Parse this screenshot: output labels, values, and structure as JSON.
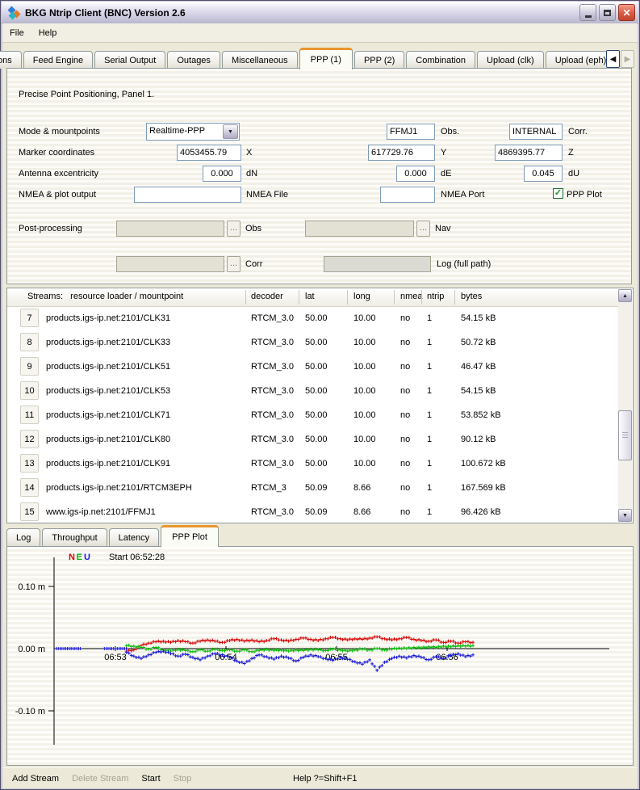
{
  "window": {
    "title": "BKG Ntrip Client (BNC) Version 2.6",
    "icons": {
      "close": "✕",
      "scroll_left": "◀",
      "scroll_right": "▶",
      "dropdown_arrow": "▼",
      "scroll_up": "▲",
      "scroll_down": "▼",
      "check": "✓"
    }
  },
  "menu": {
    "items": [
      "File",
      "Help"
    ]
  },
  "tabs": {
    "items": [
      {
        "label": "ctions",
        "selected": false
      },
      {
        "label": "Feed Engine",
        "selected": false
      },
      {
        "label": "Serial Output",
        "selected": false
      },
      {
        "label": "Outages",
        "selected": false
      },
      {
        "label": "Miscellaneous",
        "selected": false
      },
      {
        "label": "PPP (1)",
        "selected": true
      },
      {
        "label": "PPP (2)",
        "selected": false
      },
      {
        "label": "Combination",
        "selected": false
      },
      {
        "label": "Upload (clk)",
        "selected": false
      },
      {
        "label": "Upload (eph)",
        "selected": false
      }
    ]
  },
  "panel": {
    "caption": "Precise Point Positioning, Panel 1.",
    "mode": {
      "label": "Mode & mountpoints",
      "value": "Realtime-PPP",
      "obs_value": "FFMJ1",
      "obs_label": "Obs.",
      "corr_value": "INTERNAL",
      "corr_label": "Corr."
    },
    "marker": {
      "label": "Marker coordinates",
      "x": "4053455.79",
      "x_label": "X",
      "y": "617729.76",
      "y_label": "Y",
      "z": "4869395.77",
      "z_label": "Z"
    },
    "antenna": {
      "label": "Antenna excentricity",
      "dn": "0.000",
      "dn_label": "dN",
      "de": "0.000",
      "de_label": "dE",
      "du": "0.045",
      "du_label": "dU"
    },
    "nmea": {
      "label": "NMEA & plot output",
      "file_value": "",
      "file_label": "NMEA File",
      "port_value": "",
      "port_label": "NMEA Port",
      "ppp_plot_label": "PPP Plot",
      "ppp_plot_checked": true
    },
    "post": {
      "label": "Post-processing",
      "browse": "...",
      "obs_label": "Obs",
      "nav_label": "Nav",
      "corr_label": "Corr",
      "log_label": "Log (full path)"
    }
  },
  "streams_table": {
    "headers": [
      "Streams:   resource loader / mountpoint",
      "decoder",
      "lat",
      "long",
      "nmea",
      "ntrip",
      "bytes"
    ],
    "rows": [
      {
        "num": "7",
        "mountpoint": "products.igs-ip.net:2101/CLK31",
        "decoder": "RTCM_3.0",
        "lat": "50.00",
        "long": "10.00",
        "nmea": "no",
        "ntrip": "1",
        "bytes": "54.15 kB"
      },
      {
        "num": "8",
        "mountpoint": "products.igs-ip.net:2101/CLK33",
        "decoder": "RTCM_3.0",
        "lat": "50.00",
        "long": "10.00",
        "nmea": "no",
        "ntrip": "1",
        "bytes": "50.72 kB"
      },
      {
        "num": "9",
        "mountpoint": "products.igs-ip.net:2101/CLK51",
        "decoder": "RTCM_3.0",
        "lat": "50.00",
        "long": "10.00",
        "nmea": "no",
        "ntrip": "1",
        "bytes": "46.47 kB"
      },
      {
        "num": "10",
        "mountpoint": "products.igs-ip.net:2101/CLK53",
        "decoder": "RTCM_3.0",
        "lat": "50.00",
        "long": "10.00",
        "nmea": "no",
        "ntrip": "1",
        "bytes": "54.15 kB"
      },
      {
        "num": "11",
        "mountpoint": "products.igs-ip.net:2101/CLK71",
        "decoder": "RTCM_3.0",
        "lat": "50.00",
        "long": "10.00",
        "nmea": "no",
        "ntrip": "1",
        "bytes": "53.852 kB"
      },
      {
        "num": "12",
        "mountpoint": "products.igs-ip.net:2101/CLK80",
        "decoder": "RTCM_3.0",
        "lat": "50.00",
        "long": "10.00",
        "nmea": "no",
        "ntrip": "1",
        "bytes": "90.12 kB"
      },
      {
        "num": "13",
        "mountpoint": "products.igs-ip.net:2101/CLK91",
        "decoder": "RTCM_3.0",
        "lat": "50.00",
        "long": "10.00",
        "nmea": "no",
        "ntrip": "1",
        "bytes": "100.672 kB"
      },
      {
        "num": "14",
        "mountpoint": "products.igs-ip.net:2101/RTCM3EPH",
        "decoder": "RTCM_3",
        "lat": "50.09",
        "long": "8.66",
        "nmea": "no",
        "ntrip": "1",
        "bytes": "167.569 kB"
      },
      {
        "num": "15",
        "mountpoint": "www.igs-ip.net:2101/FFMJ1",
        "decoder": "RTCM_3.0",
        "lat": "50.09",
        "long": "8.66",
        "nmea": "no",
        "ntrip": "1",
        "bytes": "96.426 kB"
      }
    ]
  },
  "bottom_tabs": {
    "items": [
      {
        "label": "Log",
        "selected": false
      },
      {
        "label": "Throughput",
        "selected": false
      },
      {
        "label": "Latency",
        "selected": false
      },
      {
        "label": "PPP Plot",
        "selected": true
      }
    ]
  },
  "chart_data": {
    "type": "scatter",
    "start_label": "Start 06:52:28",
    "legend": [
      {
        "name": "N",
        "color": "#dd0000"
      },
      {
        "name": "E",
        "color": "#00bb00"
      },
      {
        "name": "U",
        "color": "#1414dc"
      }
    ],
    "ylim": [
      -0.15,
      0.15
    ],
    "y_ticks": [
      {
        "v": 0.1,
        "label": "0.10 m"
      },
      {
        "v": 0.0,
        "label": "0.00 m"
      },
      {
        "v": -0.1,
        "label": "-0.10 m"
      }
    ],
    "x_ticks": [
      {
        "t": 32,
        "label": "06:53"
      },
      {
        "t": 92,
        "label": "06:54"
      },
      {
        "t": 152,
        "label": "06:55"
      },
      {
        "t": 212,
        "label": "06:56"
      }
    ],
    "pre_segments": [
      {
        "series": "U",
        "t0": 0,
        "t1": 13,
        "v": 0
      },
      {
        "series": "U",
        "t0": 26,
        "t1": 38,
        "v": 0
      }
    ],
    "series": [
      {
        "name": "N",
        "color": "#dd0000",
        "points": [
          [
            38,
            -0.004
          ],
          [
            42,
            -0.002
          ],
          [
            46,
            0.005
          ],
          [
            50,
            0.009
          ],
          [
            54,
            0.011
          ],
          [
            58,
            0.012
          ],
          [
            62,
            0.01
          ],
          [
            66,
            0.013
          ],
          [
            70,
            0.011
          ],
          [
            74,
            0.009
          ],
          [
            78,
            0.012
          ],
          [
            82,
            0.014
          ],
          [
            86,
            0.012
          ],
          [
            90,
            0.01
          ],
          [
            94,
            0.013
          ],
          [
            98,
            0.015
          ],
          [
            102,
            0.012
          ],
          [
            106,
            0.014
          ],
          [
            110,
            0.011
          ],
          [
            114,
            0.013
          ],
          [
            118,
            0.016
          ],
          [
            122,
            0.014
          ],
          [
            126,
            0.012
          ],
          [
            130,
            0.015
          ],
          [
            134,
            0.017
          ],
          [
            138,
            0.015
          ],
          [
            142,
            0.013
          ],
          [
            146,
            0.016
          ],
          [
            150,
            0.018
          ],
          [
            154,
            0.016
          ],
          [
            158,
            0.014
          ],
          [
            162,
            0.016
          ],
          [
            166,
            0.015
          ],
          [
            170,
            0.017
          ],
          [
            174,
            0.019
          ],
          [
            178,
            0.016
          ],
          [
            182,
            0.014
          ],
          [
            186,
            0.016
          ],
          [
            190,
            0.018
          ],
          [
            194,
            0.015
          ],
          [
            198,
            0.013
          ],
          [
            202,
            0.012
          ],
          [
            206,
            0.014
          ],
          [
            210,
            0.01
          ],
          [
            214,
            0.012
          ],
          [
            218,
            0.009
          ],
          [
            222,
            0.011
          ],
          [
            226,
            0.01
          ]
        ]
      },
      {
        "name": "E",
        "color": "#00bb00",
        "points": [
          [
            38,
            0.005
          ],
          [
            42,
            0.004
          ],
          [
            46,
            0.002
          ],
          [
            50,
            -0.001
          ],
          [
            54,
            0.002
          ],
          [
            58,
            -0.002
          ],
          [
            62,
            -0.004
          ],
          [
            66,
            -0.001
          ],
          [
            70,
            -0.003
          ],
          [
            74,
            -0.005
          ],
          [
            78,
            -0.002
          ],
          [
            82,
            -0.004
          ],
          [
            86,
            -0.001
          ],
          [
            90,
            -0.003
          ],
          [
            94,
            -0.002
          ],
          [
            98,
            -0.004
          ],
          [
            102,
            -0.002
          ],
          [
            106,
            -0.005
          ],
          [
            110,
            -0.003
          ],
          [
            114,
            -0.001
          ],
          [
            118,
            -0.003
          ],
          [
            122,
            -0.002
          ],
          [
            126,
            -0.004
          ],
          [
            130,
            -0.002
          ],
          [
            134,
            -0.003
          ],
          [
            138,
            -0.001
          ],
          [
            142,
            -0.002
          ],
          [
            146,
            -0.003
          ],
          [
            150,
            -0.001
          ],
          [
            154,
            -0.002
          ],
          [
            158,
            -0.004
          ],
          [
            162,
            -0.002
          ],
          [
            166,
            -0.001
          ],
          [
            170,
            -0.002
          ],
          [
            174,
            0.0
          ],
          [
            178,
            -0.002
          ],
          [
            182,
            -0.001
          ],
          [
            186,
            0.001
          ],
          [
            190,
            0.0
          ],
          [
            194,
            0.002
          ],
          [
            198,
            0.001
          ],
          [
            202,
            0.003
          ],
          [
            206,
            0.002
          ],
          [
            210,
            0.004
          ],
          [
            214,
            0.003
          ],
          [
            218,
            0.005
          ],
          [
            222,
            0.004
          ],
          [
            226,
            0.005
          ]
        ]
      },
      {
        "name": "U",
        "color": "#1414dc",
        "points": [
          [
            38,
            -0.006
          ],
          [
            42,
            -0.012
          ],
          [
            46,
            -0.016
          ],
          [
            50,
            -0.01
          ],
          [
            54,
            -0.006
          ],
          [
            58,
            -0.004
          ],
          [
            62,
            -0.008
          ],
          [
            66,
            -0.012
          ],
          [
            70,
            -0.009
          ],
          [
            74,
            -0.014
          ],
          [
            78,
            -0.018
          ],
          [
            82,
            -0.012
          ],
          [
            86,
            -0.008
          ],
          [
            90,
            -0.01
          ],
          [
            94,
            -0.014
          ],
          [
            98,
            -0.02
          ],
          [
            102,
            -0.024
          ],
          [
            106,
            -0.016
          ],
          [
            110,
            -0.01
          ],
          [
            114,
            -0.013
          ],
          [
            118,
            -0.017
          ],
          [
            122,
            -0.012
          ],
          [
            126,
            -0.015
          ],
          [
            130,
            -0.02
          ],
          [
            134,
            -0.014
          ],
          [
            138,
            -0.01
          ],
          [
            142,
            -0.013
          ],
          [
            146,
            -0.016
          ],
          [
            150,
            -0.019
          ],
          [
            154,
            -0.014
          ],
          [
            158,
            -0.017
          ],
          [
            162,
            -0.021
          ],
          [
            166,
            -0.025
          ],
          [
            170,
            -0.018
          ],
          [
            174,
            -0.035
          ],
          [
            178,
            -0.022
          ],
          [
            182,
            -0.016
          ],
          [
            186,
            -0.012
          ],
          [
            190,
            -0.015
          ],
          [
            194,
            -0.011
          ],
          [
            198,
            -0.014
          ],
          [
            202,
            -0.018
          ],
          [
            206,
            -0.013
          ],
          [
            210,
            -0.016
          ],
          [
            214,
            -0.011
          ],
          [
            218,
            -0.008
          ],
          [
            222,
            -0.013
          ],
          [
            226,
            -0.01
          ]
        ]
      }
    ]
  },
  "status": {
    "add": "Add Stream",
    "delete": "Delete Stream",
    "start": "Start",
    "stop": "Stop",
    "help": "Help ?=Shift+F1"
  }
}
